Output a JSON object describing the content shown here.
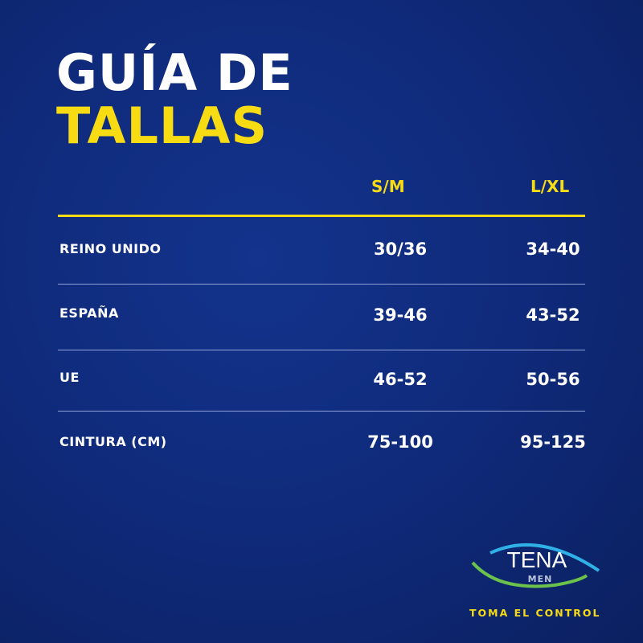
{
  "title": {
    "line1": "GUÍA DE",
    "line2": "TALLAS"
  },
  "columns": [
    "S/M",
    "L/XL"
  ],
  "rows": [
    {
      "label": "REINO UNIDO",
      "sm": "30/36",
      "lxl": "34-40"
    },
    {
      "label": "ESPAÑA",
      "sm": "39-46",
      "lxl": "43-52"
    },
    {
      "label": "UE",
      "sm": "46-52",
      "lxl": "50-56"
    },
    {
      "label": "CINTURA (CM)",
      "sm": "75-100",
      "lxl": "95-125"
    }
  ],
  "brand": {
    "name": "TENA",
    "sub": "MEN",
    "tagline": "TOMA EL CONTROL"
  },
  "colors": {
    "background": "#0f2a7a",
    "accent": "#f7dc14"
  }
}
